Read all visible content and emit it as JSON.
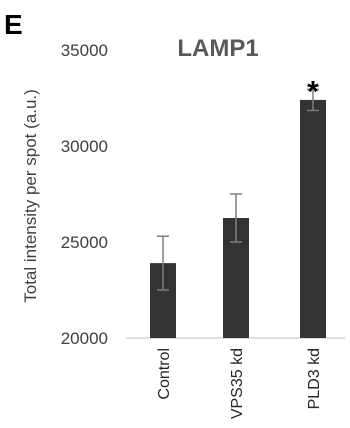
{
  "panel_label": "E",
  "chart_data": {
    "type": "bar",
    "title": "LAMP1",
    "xlabel": "",
    "ylabel": "Total intensity per spot (a.u.)",
    "categories": [
      "Control",
      "VPS35 kd",
      "PLD3 kd"
    ],
    "values": [
      23900,
      26250,
      32400
    ],
    "errors": [
      1400,
      1250,
      550
    ],
    "annotations": [
      "",
      "",
      "*"
    ],
    "ylim": [
      20000,
      35000
    ],
    "yticks": [
      20000,
      25000,
      30000,
      35000
    ],
    "ytick_labels": [
      "20000",
      "25000",
      "30000",
      "35000"
    ],
    "grid": false,
    "legend": "none",
    "bar_color": "#333333",
    "error_color": "#7f7f7f"
  }
}
